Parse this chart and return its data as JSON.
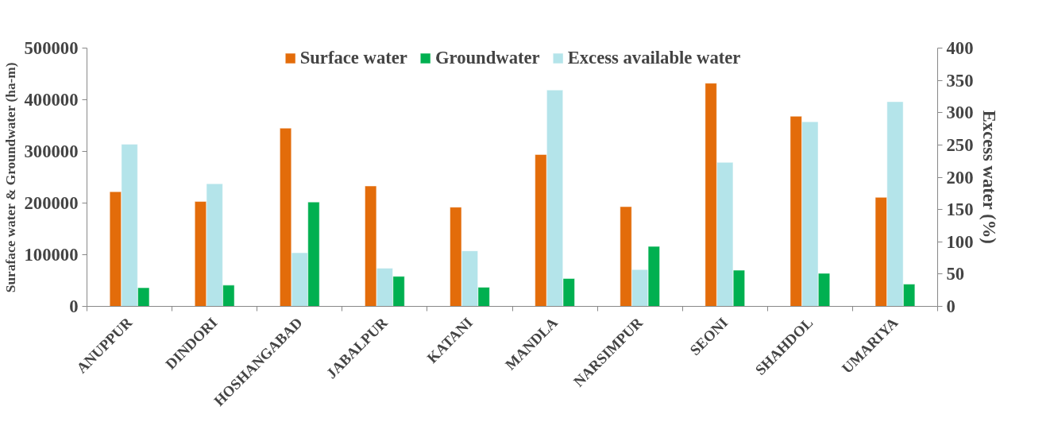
{
  "chart_data": {
    "type": "bar",
    "categories": [
      "ANUPPUR",
      "DINDORI",
      "HOSHANGABAD",
      "JABALPUR",
      "KATANI",
      "MANDLA",
      "NARSIMPUR",
      "SEONI",
      "SHAHDOL",
      "UMARIYA"
    ],
    "series": [
      {
        "name": "Surface water",
        "color": "#e36c0a",
        "values": [
          222000,
          203000,
          345000,
          233000,
          192000,
          294000,
          193000,
          432000,
          368000,
          211000
        ]
      },
      {
        "name": "Groundwater",
        "color": "#00b050",
        "values": [
          36000,
          41000,
          202000,
          58000,
          37000,
          54000,
          116000,
          70000,
          64000,
          43000
        ]
      },
      {
        "name": "Excess available water",
        "color": "#b4e4ea",
        "axis": "y2",
        "values": [
          251,
          190,
          83,
          59,
          86,
          335,
          57,
          223,
          286,
          317
        ]
      }
    ],
    "ylabel": "Suraface water & Groundwater (ha-m)",
    "y2label": "Excess water (%)",
    "ylim": [
      0,
      500000
    ],
    "yticks": [
      0,
      100000,
      200000,
      300000,
      400000,
      500000
    ],
    "y2lim": [
      0,
      400
    ],
    "y2ticks": [
      0,
      50,
      100,
      150,
      200,
      250,
      300,
      350,
      400
    ],
    "legend": "top",
    "grid": false
  }
}
